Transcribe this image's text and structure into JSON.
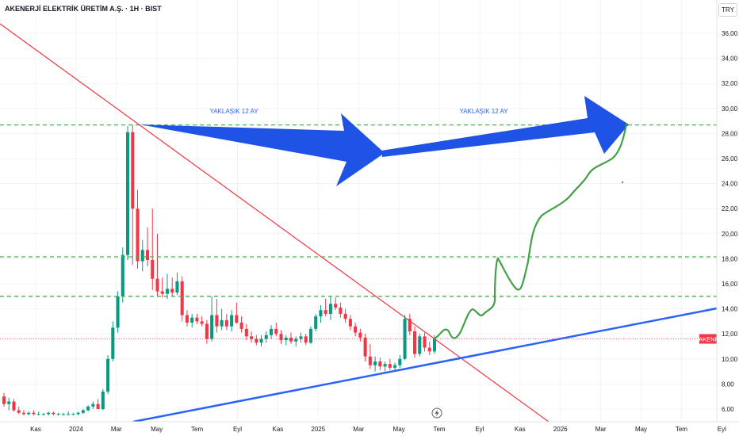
{
  "header": {
    "title": "AKENERJİ ELEKTRİK ÜRETİM A.Ş. · 1H · BIST",
    "currency": "TRY"
  },
  "annotations": {
    "arrow1_label": "YAKLAŞIK 12 AY",
    "arrow2_label": "YAKLAŞIK 12 AY"
  },
  "tags": {
    "level_2868": "28,68",
    "level_1815": "18,15",
    "level_1500": "15,00",
    "last_symbol": "AKENR",
    "last_price": "11,60",
    "last_countdown": "1d 8h"
  },
  "colors": {
    "up": "#089981",
    "down": "#f23645",
    "level": "#4caf50",
    "trend_down": "#f23645",
    "trend_up": "#2962ff",
    "projection": "#43a047",
    "arrow": "#1e53e5"
  },
  "icons": {
    "event": "lightning-icon"
  },
  "chart_data": {
    "type": "candlestick",
    "title": "AKENERJİ ELEKTRİK ÜRETİM A.Ş. · 1H · BIST",
    "ylim": [
      5.5,
      38
    ],
    "y_ticks": [
      "6,00",
      "8,00",
      "10,00",
      "12,00",
      "14,00",
      "16,00",
      "18,00",
      "20,00",
      "22,00",
      "24,00",
      "26,00",
      "28,00",
      "30,00",
      "32,00",
      "34,00",
      "36,00"
    ],
    "x_ticks": [
      "Kas",
      "2024",
      "Mar",
      "May",
      "Tem",
      "Eyl",
      "Kas",
      "2025",
      "Mar",
      "May",
      "Tem",
      "Eyl",
      "Kas",
      "2026",
      "Mar",
      "May",
      "Tem",
      "Eyl"
    ],
    "horizontal_levels": [
      28.68,
      18.15,
      15.0
    ],
    "last_price": 11.6,
    "candles": [
      {
        "o": 7.0,
        "h": 7.3,
        "l": 6.2,
        "c": 6.4
      },
      {
        "o": 6.4,
        "h": 6.9,
        "l": 5.9,
        "c": 6.6
      },
      {
        "o": 6.6,
        "h": 6.8,
        "l": 5.8,
        "c": 5.9
      },
      {
        "o": 5.9,
        "h": 6.2,
        "l": 5.6,
        "c": 5.7
      },
      {
        "o": 5.7,
        "h": 5.9,
        "l": 5.5,
        "c": 5.6
      },
      {
        "o": 5.6,
        "h": 5.8,
        "l": 5.5,
        "c": 5.7
      },
      {
        "o": 5.7,
        "h": 5.9,
        "l": 5.5,
        "c": 5.6
      },
      {
        "o": 5.6,
        "h": 5.8,
        "l": 5.5,
        "c": 5.6
      },
      {
        "o": 5.6,
        "h": 5.7,
        "l": 5.5,
        "c": 5.6
      },
      {
        "o": 5.6,
        "h": 5.8,
        "l": 5.5,
        "c": 5.7
      },
      {
        "o": 5.7,
        "h": 5.8,
        "l": 5.5,
        "c": 5.6
      },
      {
        "o": 5.6,
        "h": 5.7,
        "l": 5.5,
        "c": 5.6
      },
      {
        "o": 5.6,
        "h": 5.7,
        "l": 5.5,
        "c": 5.6
      },
      {
        "o": 5.6,
        "h": 5.8,
        "l": 5.5,
        "c": 5.6
      },
      {
        "o": 5.6,
        "h": 5.7,
        "l": 5.5,
        "c": 5.6
      },
      {
        "o": 5.6,
        "h": 5.8,
        "l": 5.5,
        "c": 5.7
      },
      {
        "o": 5.7,
        "h": 6.0,
        "l": 5.6,
        "c": 5.9
      },
      {
        "o": 5.9,
        "h": 6.3,
        "l": 5.8,
        "c": 6.2
      },
      {
        "o": 6.2,
        "h": 6.6,
        "l": 6.0,
        "c": 6.4
      },
      {
        "o": 6.4,
        "h": 6.8,
        "l": 6.2,
        "c": 6.0
      },
      {
        "o": 6.0,
        "h": 7.6,
        "l": 5.9,
        "c": 7.4
      },
      {
        "o": 7.4,
        "h": 10.3,
        "l": 7.2,
        "c": 10.0
      },
      {
        "o": 10.0,
        "h": 13.0,
        "l": 9.8,
        "c": 12.5
      },
      {
        "o": 12.5,
        "h": 15.4,
        "l": 12.1,
        "c": 15.0
      },
      {
        "o": 15.0,
        "h": 18.9,
        "l": 14.5,
        "c": 18.3
      },
      {
        "o": 18.3,
        "h": 28.6,
        "l": 17.9,
        "c": 28.1
      },
      {
        "o": 28.1,
        "h": 28.68,
        "l": 17.5,
        "c": 22.0
      },
      {
        "o": 22.0,
        "h": 23.5,
        "l": 17.2,
        "c": 17.8
      },
      {
        "o": 17.8,
        "h": 19.5,
        "l": 17.0,
        "c": 18.7
      },
      {
        "o": 18.7,
        "h": 20.5,
        "l": 17.4,
        "c": 17.9
      },
      {
        "o": 17.9,
        "h": 22.0,
        "l": 15.5,
        "c": 16.4
      },
      {
        "o": 16.4,
        "h": 20.0,
        "l": 15.0,
        "c": 15.4
      },
      {
        "o": 15.4,
        "h": 16.5,
        "l": 14.9,
        "c": 15.2
      },
      {
        "o": 15.2,
        "h": 16.8,
        "l": 14.8,
        "c": 15.6
      },
      {
        "o": 15.6,
        "h": 16.5,
        "l": 15.0,
        "c": 15.3
      },
      {
        "o": 15.3,
        "h": 16.9,
        "l": 15.1,
        "c": 16.2
      },
      {
        "o": 16.2,
        "h": 16.6,
        "l": 13.0,
        "c": 13.5
      },
      {
        "o": 13.5,
        "h": 13.9,
        "l": 12.6,
        "c": 12.9
      },
      {
        "o": 12.9,
        "h": 13.6,
        "l": 12.5,
        "c": 13.3
      },
      {
        "o": 13.3,
        "h": 13.6,
        "l": 12.8,
        "c": 13.0
      },
      {
        "o": 13.0,
        "h": 13.4,
        "l": 12.6,
        "c": 12.8
      },
      {
        "o": 12.8,
        "h": 13.1,
        "l": 11.2,
        "c": 11.6
      },
      {
        "o": 11.6,
        "h": 15.0,
        "l": 11.4,
        "c": 13.5
      },
      {
        "o": 13.5,
        "h": 14.8,
        "l": 12.1,
        "c": 12.6
      },
      {
        "o": 12.6,
        "h": 14.0,
        "l": 12.3,
        "c": 13.1
      },
      {
        "o": 13.1,
        "h": 13.6,
        "l": 12.3,
        "c": 12.6
      },
      {
        "o": 12.6,
        "h": 13.9,
        "l": 12.2,
        "c": 13.5
      },
      {
        "o": 13.5,
        "h": 14.5,
        "l": 12.8,
        "c": 12.9
      },
      {
        "o": 12.9,
        "h": 13.4,
        "l": 12.1,
        "c": 12.4
      },
      {
        "o": 12.4,
        "h": 12.8,
        "l": 11.5,
        "c": 11.8
      },
      {
        "o": 11.8,
        "h": 12.2,
        "l": 11.3,
        "c": 11.6
      },
      {
        "o": 11.6,
        "h": 11.9,
        "l": 11.1,
        "c": 11.3
      },
      {
        "o": 11.3,
        "h": 11.9,
        "l": 11.0,
        "c": 11.6
      },
      {
        "o": 11.6,
        "h": 12.2,
        "l": 11.3,
        "c": 11.9
      },
      {
        "o": 11.9,
        "h": 12.7,
        "l": 11.6,
        "c": 12.4
      },
      {
        "o": 12.4,
        "h": 12.9,
        "l": 11.8,
        "c": 12.0
      },
      {
        "o": 12.0,
        "h": 12.3,
        "l": 11.2,
        "c": 11.5
      },
      {
        "o": 11.5,
        "h": 11.9,
        "l": 11.1,
        "c": 11.7
      },
      {
        "o": 11.7,
        "h": 12.1,
        "l": 11.2,
        "c": 11.4
      },
      {
        "o": 11.4,
        "h": 11.8,
        "l": 11.0,
        "c": 11.6
      },
      {
        "o": 11.6,
        "h": 12.1,
        "l": 11.3,
        "c": 11.8
      },
      {
        "o": 11.8,
        "h": 12.0,
        "l": 11.1,
        "c": 11.3
      },
      {
        "o": 11.3,
        "h": 12.6,
        "l": 11.2,
        "c": 12.4
      },
      {
        "o": 12.4,
        "h": 13.6,
        "l": 12.2,
        "c": 13.4
      },
      {
        "o": 13.4,
        "h": 14.3,
        "l": 12.9,
        "c": 13.9
      },
      {
        "o": 13.9,
        "h": 14.8,
        "l": 13.4,
        "c": 13.6
      },
      {
        "o": 13.6,
        "h": 15.0,
        "l": 13.1,
        "c": 14.4
      },
      {
        "o": 14.4,
        "h": 14.9,
        "l": 13.9,
        "c": 14.1
      },
      {
        "o": 14.1,
        "h": 14.5,
        "l": 13.3,
        "c": 13.6
      },
      {
        "o": 13.6,
        "h": 14.0,
        "l": 12.9,
        "c": 13.2
      },
      {
        "o": 13.2,
        "h": 13.5,
        "l": 12.3,
        "c": 12.6
      },
      {
        "o": 12.6,
        "h": 12.9,
        "l": 11.8,
        "c": 12.1
      },
      {
        "o": 12.1,
        "h": 12.4,
        "l": 11.4,
        "c": 11.7
      },
      {
        "o": 11.7,
        "h": 12.0,
        "l": 9.8,
        "c": 10.2
      },
      {
        "o": 10.2,
        "h": 11.2,
        "l": 9.2,
        "c": 9.5
      },
      {
        "o": 9.5,
        "h": 10.2,
        "l": 9.0,
        "c": 9.8
      },
      {
        "o": 9.8,
        "h": 10.1,
        "l": 9.1,
        "c": 9.4
      },
      {
        "o": 9.4,
        "h": 9.8,
        "l": 9.0,
        "c": 9.6
      },
      {
        "o": 9.6,
        "h": 10.0,
        "l": 9.1,
        "c": 9.3
      },
      {
        "o": 9.3,
        "h": 9.7,
        "l": 9.0,
        "c": 9.5
      },
      {
        "o": 9.5,
        "h": 10.3,
        "l": 9.3,
        "c": 10.0
      },
      {
        "o": 10.0,
        "h": 13.5,
        "l": 9.9,
        "c": 13.2
      },
      {
        "o": 13.2,
        "h": 13.6,
        "l": 11.9,
        "c": 12.2
      },
      {
        "o": 12.2,
        "h": 12.6,
        "l": 10.1,
        "c": 10.4
      },
      {
        "o": 10.4,
        "h": 12.0,
        "l": 10.2,
        "c": 11.8
      },
      {
        "o": 11.8,
        "h": 12.1,
        "l": 10.6,
        "c": 10.9
      },
      {
        "o": 10.9,
        "h": 11.4,
        "l": 10.3,
        "c": 10.6
      },
      {
        "o": 10.6,
        "h": 11.9,
        "l": 10.4,
        "c": 11.6
      }
    ],
    "trendlines": [
      {
        "name": "downtrend",
        "color": "red"
      },
      {
        "name": "uptrend",
        "color": "blue"
      }
    ]
  }
}
